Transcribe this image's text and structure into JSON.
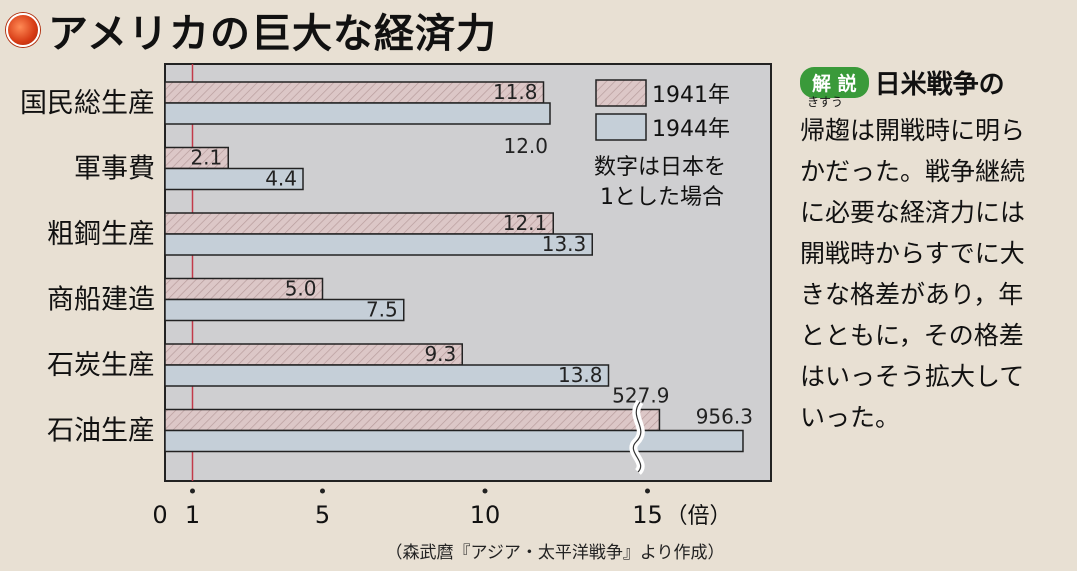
{
  "title": "アメリカの巨大な経済力",
  "chart_data": {
    "type": "bar",
    "orientation": "horizontal",
    "categories": [
      "国民総生産",
      "軍事費",
      "粗鋼生産",
      "商船建造",
      "石炭生産",
      "石油生産"
    ],
    "series": [
      {
        "name": "1941年",
        "color": "#dcc7c7",
        "hatch": true,
        "values": [
          11.8,
          2.1,
          12.1,
          5.0,
          9.3,
          527.9
        ]
      },
      {
        "name": "1944年",
        "color": "#c5cfd8",
        "hatch": false,
        "values": [
          12.0,
          4.4,
          13.3,
          7.5,
          13.8,
          956.3
        ]
      }
    ],
    "value_labels": {
      "1941年": [
        "11.8",
        "2.1",
        "12.1",
        "5.0",
        "9.3",
        "527.9"
      ],
      "1944年": [
        "12.0",
        "4.4",
        "13.3",
        "7.5",
        "13.8",
        "956.3"
      ]
    },
    "x_ticks": [
      "0",
      "1",
      "5",
      "10",
      "15"
    ],
    "x_unit": "（倍）",
    "reference_line": 1,
    "legend_position": "top-right",
    "legend_note": [
      "数字は日本を",
      "1とした場合"
    ],
    "axis_break": true
  },
  "source": "（森武麿『アジア・太平洋戦争』より作成）",
  "explanation": {
    "badge": "解 説",
    "heading": "日米戦争の",
    "ruby_text": "きすう",
    "ruby_base": "帰趨",
    "lines": [
      "は開戦時に明ら",
      "かだった。戦争継続",
      "に必要な経済力には",
      "開戦時からすでに大",
      "きな格差があり，年",
      "とともに，その格差",
      "はいっそう拡大して",
      "いった。"
    ]
  }
}
